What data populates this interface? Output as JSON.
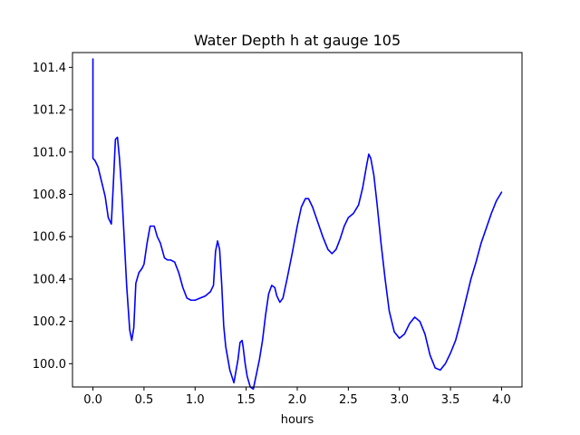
{
  "chart_data": {
    "type": "line",
    "title": "Water Depth h at gauge 105",
    "xlabel": "hours",
    "ylabel": "",
    "xlim": [
      -0.2,
      4.2
    ],
    "ylim": [
      99.89,
      101.47
    ],
    "xticks": [
      0.0,
      0.5,
      1.0,
      1.5,
      2.0,
      2.5,
      3.0,
      3.5,
      4.0
    ],
    "xtick_labels": [
      "0.0",
      "0.5",
      "1.0",
      "1.5",
      "2.0",
      "2.5",
      "3.0",
      "3.5",
      "4.0"
    ],
    "yticks": [
      100.0,
      100.2,
      100.4,
      100.6,
      100.8,
      101.0,
      101.2,
      101.4
    ],
    "ytick_labels": [
      "100.0",
      "100.2",
      "100.4",
      "100.6",
      "100.8",
      "101.0",
      "101.2",
      "101.4"
    ],
    "grid": false,
    "line_color": "#0000ff",
    "series": [
      {
        "x": [
          0.0,
          0.0,
          0.0,
          0.02,
          0.05,
          0.08,
          0.12,
          0.15,
          0.18,
          0.2,
          0.22,
          0.24,
          0.26,
          0.28,
          0.3,
          0.33,
          0.36,
          0.38,
          0.4,
          0.42,
          0.45,
          0.48,
          0.5,
          0.53,
          0.56,
          0.6,
          0.63,
          0.66,
          0.7,
          0.73,
          0.76,
          0.8,
          0.84,
          0.88,
          0.92,
          0.96,
          1.0,
          1.05,
          1.1,
          1.15,
          1.18,
          1.2,
          1.22,
          1.24,
          1.26,
          1.28,
          1.3,
          1.34,
          1.38,
          1.42,
          1.44,
          1.46,
          1.47,
          1.49,
          1.51,
          1.54,
          1.57,
          1.6,
          1.63,
          1.66,
          1.69,
          1.72,
          1.75,
          1.78,
          1.8,
          1.83,
          1.86,
          1.9,
          1.95,
          2.0,
          2.04,
          2.08,
          2.11,
          2.15,
          2.2,
          2.25,
          2.3,
          2.34,
          2.38,
          2.42,
          2.46,
          2.5,
          2.55,
          2.6,
          2.64,
          2.68,
          2.7,
          2.72,
          2.75,
          2.78,
          2.82,
          2.86,
          2.9,
          2.95,
          3.0,
          3.05,
          3.1,
          3.15,
          3.2,
          3.25,
          3.3,
          3.35,
          3.4,
          3.45,
          3.5,
          3.55,
          3.6,
          3.65,
          3.7,
          3.75,
          3.8,
          3.85,
          3.9,
          3.95,
          4.0
        ],
        "y": [
          101.44,
          101.0,
          100.97,
          100.96,
          100.93,
          100.87,
          100.79,
          100.69,
          100.66,
          100.85,
          101.06,
          101.07,
          100.97,
          100.83,
          100.65,
          100.37,
          100.16,
          100.11,
          100.17,
          100.38,
          100.43,
          100.45,
          100.47,
          100.57,
          100.65,
          100.65,
          100.6,
          100.57,
          100.5,
          100.49,
          100.49,
          100.48,
          100.43,
          100.36,
          100.31,
          100.3,
          100.3,
          100.31,
          100.32,
          100.34,
          100.37,
          100.53,
          100.58,
          100.54,
          100.38,
          100.18,
          100.08,
          99.97,
          99.91,
          100.02,
          100.1,
          100.11,
          100.08,
          100.0,
          99.94,
          99.89,
          99.88,
          99.95,
          100.02,
          100.11,
          100.23,
          100.33,
          100.37,
          100.36,
          100.32,
          100.29,
          100.31,
          100.4,
          100.52,
          100.65,
          100.74,
          100.78,
          100.78,
          100.74,
          100.67,
          100.6,
          100.54,
          100.52,
          100.54,
          100.59,
          100.65,
          100.69,
          100.71,
          100.75,
          100.83,
          100.94,
          100.99,
          100.97,
          100.89,
          100.76,
          100.57,
          100.4,
          100.25,
          100.15,
          100.12,
          100.14,
          100.19,
          100.22,
          100.2,
          100.14,
          100.04,
          99.98,
          99.97,
          100.0,
          100.05,
          100.11,
          100.2,
          100.3,
          100.4,
          100.48,
          100.57,
          100.64,
          100.71,
          100.77,
          100.81
        ]
      }
    ]
  }
}
